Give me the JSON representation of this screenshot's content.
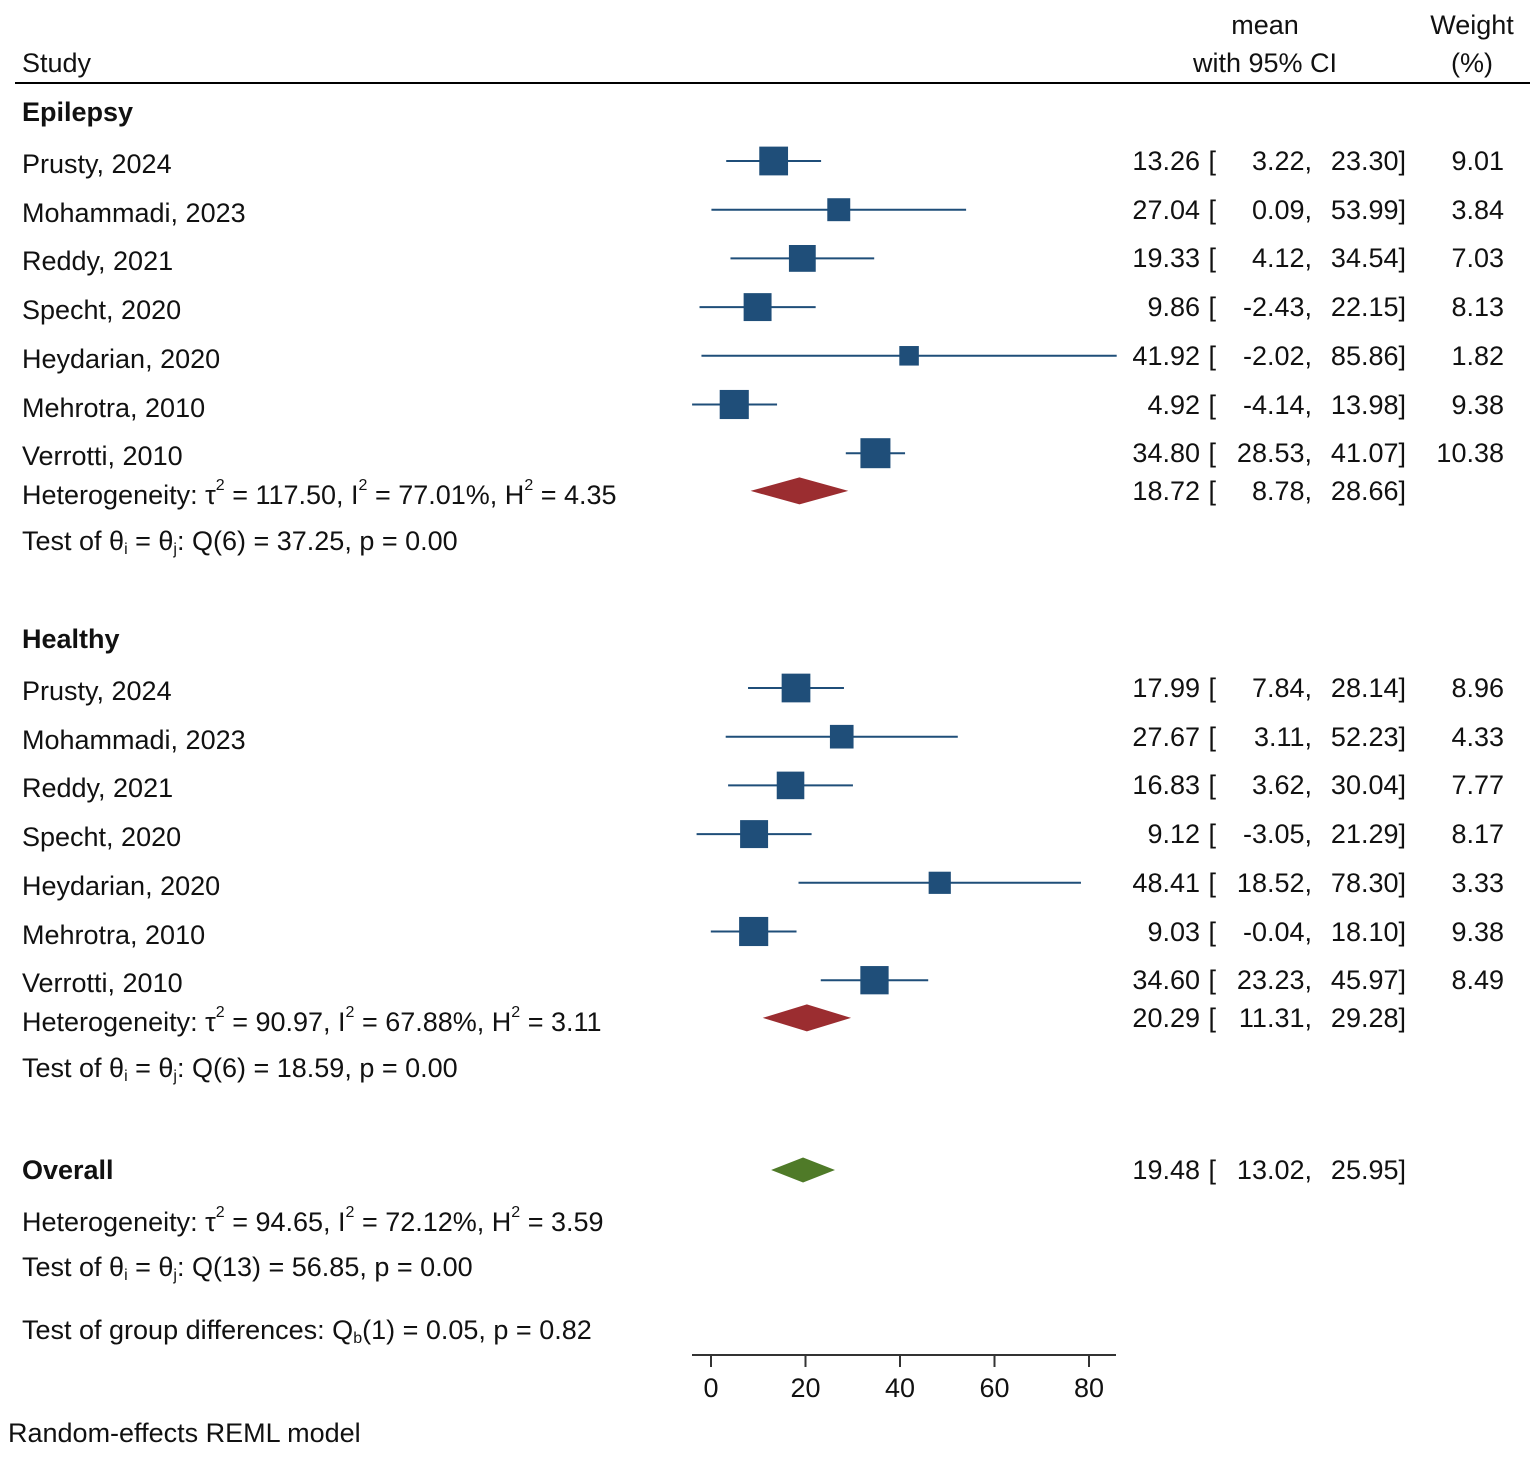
{
  "header": {
    "study": "Study",
    "mean_line1": "mean",
    "mean_line2": "with 95% CI",
    "weight_line1": "Weight",
    "weight_line2": "(%)"
  },
  "colors": {
    "study_marker": "#1f4e79",
    "subgroup_diamond": "#9b2d30",
    "overall_diamond": "#4f7a28",
    "ci_line": "#1f4e79"
  },
  "chart_data": {
    "type": "forest",
    "xlim": [
      -4,
      86
    ],
    "ticks": [
      0,
      20,
      40,
      60,
      80
    ],
    "footnote": "Random-effects REML model",
    "groups": [
      {
        "name": "Epilepsy",
        "studies": [
          {
            "label": "Prusty,  2024",
            "mean": 13.26,
            "lo": 3.22,
            "hi": 23.3,
            "mean_txt": "13.26",
            "lo_txt": "3.22,",
            "hi_txt": "23.30]",
            "weight": "9.01"
          },
          {
            "label": "Mohammadi,  2023",
            "mean": 27.04,
            "lo": 0.09,
            "hi": 53.99,
            "mean_txt": "27.04",
            "lo_txt": "0.09,",
            "hi_txt": "53.99]",
            "weight": "3.84"
          },
          {
            "label": "Reddy,  2021",
            "mean": 19.33,
            "lo": 4.12,
            "hi": 34.54,
            "mean_txt": "19.33",
            "lo_txt": "4.12,",
            "hi_txt": "34.54]",
            "weight": "7.03"
          },
          {
            "label": "Specht,  2020",
            "mean": 9.86,
            "lo": -2.43,
            "hi": 22.15,
            "mean_txt": "9.86",
            "lo_txt": "-2.43,",
            "hi_txt": "22.15]",
            "weight": "8.13"
          },
          {
            "label": "Heydarian,  2020",
            "mean": 41.92,
            "lo": -2.02,
            "hi": 85.86,
            "mean_txt": "41.92",
            "lo_txt": "-2.02,",
            "hi_txt": "85.86]",
            "weight": "1.82"
          },
          {
            "label": "Mehrotra,  2010",
            "mean": 4.92,
            "lo": -4.14,
            "hi": 13.98,
            "mean_txt": "4.92",
            "lo_txt": "-4.14,",
            "hi_txt": "13.98]",
            "weight": "9.38"
          },
          {
            "label": "Verrotti,  2010",
            "mean": 34.8,
            "lo": 28.53,
            "hi": 41.07,
            "mean_txt": "34.80",
            "lo_txt": "28.53,",
            "hi_txt": "41.07]",
            "weight": "10.38"
          }
        ],
        "pooled": {
          "mean": 18.72,
          "lo": 8.78,
          "hi": 28.66,
          "mean_txt": "18.72",
          "lo_txt": "8.78,",
          "hi_txt": "28.66]"
        },
        "het": {
          "prefix": "Heterogeneity: τ",
          "tau2": " = 117.50, I",
          "i2": " = 77.01%, H",
          "h2": " = 4.35"
        },
        "test": {
          "prefix": "Test of θ",
          "mid": " = θ",
          "rest": ": Q(6) = 37.25, p = 0.00"
        }
      },
      {
        "name": "Healthy",
        "studies": [
          {
            "label": "Prusty,  2024",
            "mean": 17.99,
            "lo": 7.84,
            "hi": 28.14,
            "mean_txt": "17.99",
            "lo_txt": "7.84,",
            "hi_txt": "28.14]",
            "weight": "8.96"
          },
          {
            "label": "Mohammadi,  2023",
            "mean": 27.67,
            "lo": 3.11,
            "hi": 52.23,
            "mean_txt": "27.67",
            "lo_txt": "3.11,",
            "hi_txt": "52.23]",
            "weight": "4.33"
          },
          {
            "label": "Reddy,  2021",
            "mean": 16.83,
            "lo": 3.62,
            "hi": 30.04,
            "mean_txt": "16.83",
            "lo_txt": "3.62,",
            "hi_txt": "30.04]",
            "weight": "7.77"
          },
          {
            "label": "Specht,  2020",
            "mean": 9.12,
            "lo": -3.05,
            "hi": 21.29,
            "mean_txt": "9.12",
            "lo_txt": "-3.05,",
            "hi_txt": "21.29]",
            "weight": "8.17"
          },
          {
            "label": "Heydarian,  2020",
            "mean": 48.41,
            "lo": 18.52,
            "hi": 78.3,
            "mean_txt": "48.41",
            "lo_txt": "18.52,",
            "hi_txt": "78.30]",
            "weight": "3.33"
          },
          {
            "label": "Mehrotra,  2010",
            "mean": 9.03,
            "lo": -0.04,
            "hi": 18.1,
            "mean_txt": "9.03",
            "lo_txt": "-0.04,",
            "hi_txt": "18.10]",
            "weight": "9.38"
          },
          {
            "label": "Verrotti,  2010",
            "mean": 34.6,
            "lo": 23.23,
            "hi": 45.97,
            "mean_txt": "34.60",
            "lo_txt": "23.23,",
            "hi_txt": "45.97]",
            "weight": "8.49"
          }
        ],
        "pooled": {
          "mean": 20.29,
          "lo": 11.31,
          "hi": 29.28,
          "mean_txt": "20.29",
          "lo_txt": "11.31,",
          "hi_txt": "29.28]"
        },
        "het": {
          "prefix": "Heterogeneity: τ",
          "tau2": " = 90.97, I",
          "i2": " = 67.88%, H",
          "h2": " = 3.11"
        },
        "test": {
          "prefix": "Test of θ",
          "mid": " = θ",
          "rest": ": Q(6) = 18.59, p = 0.00"
        }
      }
    ],
    "overall": {
      "name": "Overall",
      "mean": 19.48,
      "lo": 13.02,
      "hi": 25.95,
      "mean_txt": "19.48",
      "lo_txt": "13.02,",
      "hi_txt": "25.95]",
      "het": {
        "prefix": "Heterogeneity: τ",
        "tau2": " = 94.65, I",
        "i2": " = 72.12%, H",
        "h2": " = 3.59"
      },
      "test": {
        "prefix": "Test of θ",
        "mid": " = θ",
        "rest": ": Q(13) = 56.85, p = 0.00"
      },
      "group_diff": {
        "prefix": "Test of group differences: Q",
        "sub": "b",
        "rest": "(1) = 0.05, p = 0.82"
      }
    },
    "sup2": "2",
    "sub_i": "i",
    "sub_j": "j",
    "bracket_open": "["
  }
}
